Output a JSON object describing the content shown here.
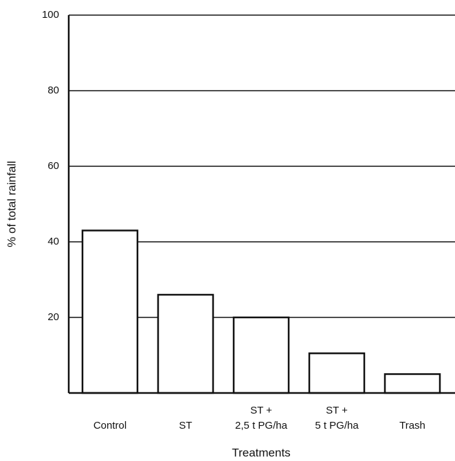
{
  "chart_data": {
    "type": "bar",
    "x_label": "Treatments",
    "y_label": "% of total rainfall",
    "categories": [
      "Control",
      "ST",
      "ST +\n2,5 t PG/ha",
      "ST +\n5 t PG/ha",
      "Trash"
    ],
    "values": [
      43,
      26,
      20,
      10.5,
      5
    ],
    "color": "#ffffff",
    "ylim": [
      0,
      100
    ],
    "yticks": [
      20,
      40,
      60,
      80,
      100
    ],
    "grid": true
  }
}
